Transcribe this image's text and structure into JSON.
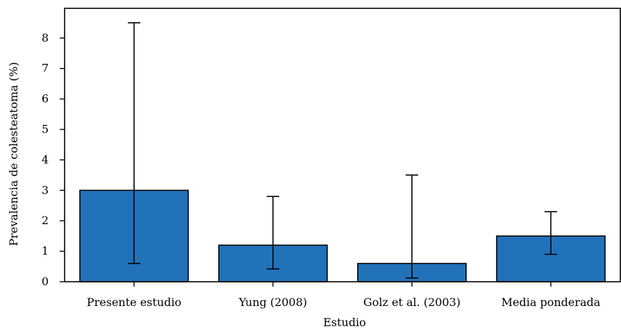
{
  "chart_data": {
    "type": "bar",
    "title": "",
    "xlabel": "Estudio",
    "ylabel": "Prevalencia de colesteatoma (%)",
    "categories": [
      "Presente estudio",
      "Yung (2008)",
      "Golz et al. (2003)",
      "Media ponderada"
    ],
    "values": [
      3.0,
      1.2,
      0.6,
      1.5
    ],
    "error_low": [
      0.6,
      0.42,
      0.12,
      0.9
    ],
    "error_high": [
      8.5,
      2.8,
      3.5,
      2.3
    ],
    "ylim": [
      0,
      9
    ],
    "yticks": [
      0,
      1,
      2,
      3,
      4,
      5,
      6,
      7,
      8
    ],
    "grid": false,
    "legend": "none",
    "bar_color": "#2272ba",
    "edge_color": "#000000"
  }
}
